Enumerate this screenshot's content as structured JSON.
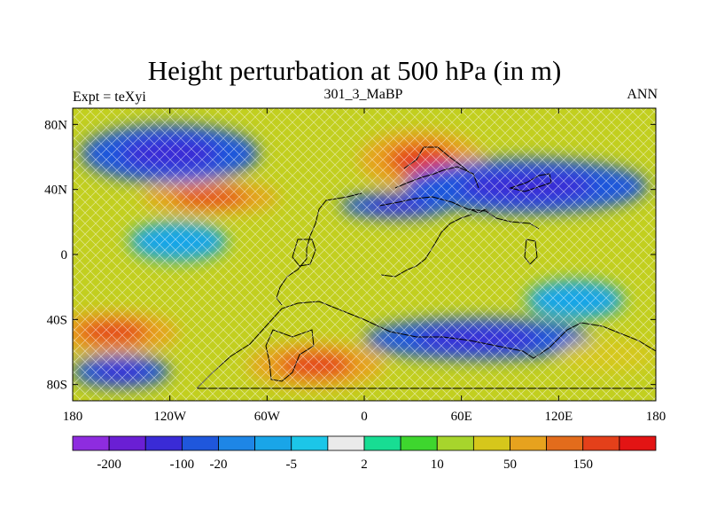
{
  "header": {
    "title": "Height perturbation at 500 hPa (in m)",
    "left": "Expt = teXyi",
    "center": "301_3_MaBP",
    "right": "ANN"
  },
  "axes": {
    "lon_range": [
      -180,
      180
    ],
    "lat_range": [
      -90,
      90
    ],
    "x_ticks": [
      {
        "value": -180,
        "label": "180"
      },
      {
        "value": -120,
        "label": "120W"
      },
      {
        "value": -60,
        "label": "60W"
      },
      {
        "value": 0,
        "label": "0"
      },
      {
        "value": 60,
        "label": "60E"
      },
      {
        "value": 120,
        "label": "120E"
      },
      {
        "value": 180,
        "label": "180"
      }
    ],
    "y_ticks": [
      {
        "value": 80,
        "label": "80N"
      },
      {
        "value": 40,
        "label": "40N"
      },
      {
        "value": 0,
        "label": "0"
      },
      {
        "value": -40,
        "label": "40S"
      },
      {
        "value": -80,
        "label": "80S"
      }
    ]
  },
  "colorbar": {
    "colors": [
      "#8e2cdf",
      "#6a1fd4",
      "#3a2bd6",
      "#1f57dc",
      "#1e86e6",
      "#19a5e8",
      "#1cc6e8",
      "#eaeaea",
      "#18dd93",
      "#3ed62e",
      "#a7d52c",
      "#d6c71b",
      "#e7a21e",
      "#e36c1c",
      "#e4401a",
      "#e31414"
    ],
    "labels": [
      {
        "after_box": 1,
        "text": "-200"
      },
      {
        "after_box": 3,
        "text": "-100"
      },
      {
        "after_box": 4,
        "text": "-20"
      },
      {
        "after_box": 6,
        "text": "-5"
      },
      {
        "after_box": 8,
        "text": "2"
      },
      {
        "after_box": 10,
        "text": "10"
      },
      {
        "after_box": 12,
        "text": "50"
      },
      {
        "after_box": 14,
        "text": "150"
      }
    ]
  },
  "field": {
    "background": "#c2cf1f",
    "features": [
      {
        "name": "north-pacific-low",
        "lon": -120,
        "lat": 62,
        "rx": 55,
        "ry": 18,
        "level": "low"
      },
      {
        "name": "north-pacific-high",
        "lon": -95,
        "lat": 35,
        "rx": 42,
        "ry": 10,
        "level": "high"
      },
      {
        "name": "eurasia-high",
        "lon": 35,
        "lat": 58,
        "rx": 38,
        "ry": 18,
        "level": "high"
      },
      {
        "name": "asia-low",
        "lon": 100,
        "lat": 42,
        "rx": 75,
        "ry": 17,
        "level": "low"
      },
      {
        "name": "atlantic-low",
        "lon": 20,
        "lat": 30,
        "rx": 35,
        "ry": 8,
        "level": "low"
      },
      {
        "name": "tropical-pacific-low",
        "lon": -115,
        "lat": 8,
        "rx": 30,
        "ry": 12,
        "level": "weak-low"
      },
      {
        "name": "indian-ocean-low",
        "lon": 130,
        "lat": -28,
        "rx": 30,
        "ry": 12,
        "level": "weak-low"
      },
      {
        "name": "south-pacific-high",
        "lon": -155,
        "lat": -48,
        "rx": 40,
        "ry": 13,
        "level": "high"
      },
      {
        "name": "southern-low",
        "lon": 70,
        "lat": -52,
        "rx": 70,
        "ry": 13,
        "level": "low"
      },
      {
        "name": "south-atlantic-high",
        "lon": -30,
        "lat": -68,
        "rx": 42,
        "ry": 14,
        "level": "high"
      },
      {
        "name": "southern-pacific-low",
        "lon": -150,
        "lat": -72,
        "rx": 30,
        "ry": 10,
        "level": "low"
      },
      {
        "name": "southern-indian-high",
        "lon": 150,
        "lat": -62,
        "rx": 30,
        "ry": 10,
        "level": "moderate-high"
      }
    ]
  }
}
